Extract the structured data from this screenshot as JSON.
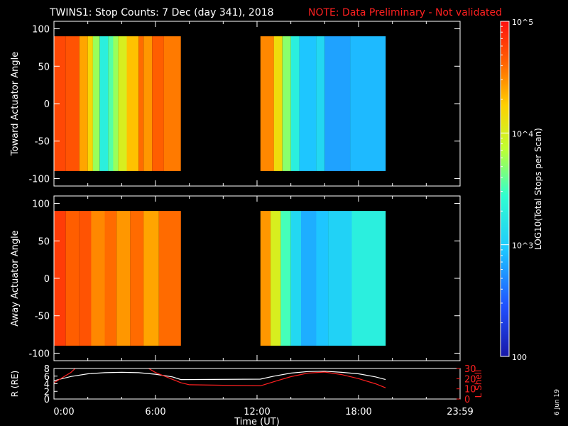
{
  "header": {
    "title": "TWINS1: Stop Counts:  7 Dec (day 341), 2018",
    "note": "NOTE: Data Preliminary - Not validated"
  },
  "side_date": "6 Jun 19",
  "colors": {
    "background": "#000000",
    "axes": "#ffffff",
    "note": "#ff2020",
    "r_line": "#ffffff",
    "lshell_line": "#ff2020"
  },
  "chart_data": [
    {
      "type": "heatmap",
      "name": "toward",
      "ylabel": "Toward Actuator Angle",
      "ylim": [
        -110,
        110
      ],
      "yticks": [
        -100,
        -50,
        0,
        50,
        100
      ],
      "y_extent": [
        -90,
        90
      ],
      "x_segments_hours": [
        [
          0.0,
          7.5
        ],
        [
          12.2,
          19.6
        ]
      ],
      "columns": [
        {
          "t0": 0.0,
          "t1": 0.7,
          "log": 4.75
        },
        {
          "t0": 0.7,
          "t1": 1.5,
          "log": 4.7
        },
        {
          "t0": 1.5,
          "t1": 2.0,
          "log": 4.4
        },
        {
          "t0": 2.0,
          "t1": 2.3,
          "log": 4.2
        },
        {
          "t0": 2.3,
          "t1": 2.7,
          "log": 3.75
        },
        {
          "t0": 2.7,
          "t1": 3.2,
          "log": 3.3
        },
        {
          "t0": 3.2,
          "t1": 3.5,
          "log": 3.55
        },
        {
          "t0": 3.5,
          "t1": 3.8,
          "log": 3.75
        },
        {
          "t0": 3.8,
          "t1": 4.3,
          "log": 4.0
        },
        {
          "t0": 4.3,
          "t1": 5.0,
          "log": 4.3
        },
        {
          "t0": 5.0,
          "t1": 5.3,
          "log": 4.6
        },
        {
          "t0": 5.3,
          "t1": 5.8,
          "log": 4.45
        },
        {
          "t0": 5.8,
          "t1": 6.5,
          "log": 4.65
        },
        {
          "t0": 6.5,
          "t1": 7.5,
          "log": 4.55
        },
        {
          "t0": 12.2,
          "t1": 13.0,
          "log": 4.5
        },
        {
          "t0": 13.0,
          "t1": 13.5,
          "log": 4.15
        },
        {
          "t0": 13.5,
          "t1": 14.0,
          "log": 3.7
        },
        {
          "t0": 14.0,
          "t1": 14.5,
          "log": 3.3
        },
        {
          "t0": 14.5,
          "t1": 15.5,
          "log": 2.95
        },
        {
          "t0": 15.5,
          "t1": 16.0,
          "log": 3.1
        },
        {
          "t0": 16.0,
          "t1": 17.5,
          "log": 2.8
        },
        {
          "t0": 17.5,
          "t1": 19.6,
          "log": 2.9
        }
      ]
    },
    {
      "type": "heatmap",
      "name": "away",
      "ylabel": "Away Actuator Angle",
      "ylim": [
        -110,
        110
      ],
      "yticks": [
        -100,
        -50,
        0,
        50,
        100
      ],
      "y_extent": [
        -90,
        90
      ],
      "x_segments_hours": [
        [
          0.0,
          7.5
        ],
        [
          12.2,
          19.6
        ]
      ],
      "columns": [
        {
          "t0": 0.0,
          "t1": 0.7,
          "log": 4.8
        },
        {
          "t0": 0.7,
          "t1": 1.5,
          "log": 4.65
        },
        {
          "t0": 1.5,
          "t1": 2.2,
          "log": 4.7
        },
        {
          "t0": 2.2,
          "t1": 3.0,
          "log": 4.5
        },
        {
          "t0": 3.0,
          "t1": 3.7,
          "log": 4.6
        },
        {
          "t0": 3.7,
          "t1": 4.5,
          "log": 4.45
        },
        {
          "t0": 4.5,
          "t1": 5.3,
          "log": 4.6
        },
        {
          "t0": 5.3,
          "t1": 6.2,
          "log": 4.4
        },
        {
          "t0": 6.2,
          "t1": 7.5,
          "log": 4.6
        },
        {
          "t0": 12.2,
          "t1": 12.8,
          "log": 4.45
        },
        {
          "t0": 12.8,
          "t1": 13.4,
          "log": 4.0
        },
        {
          "t0": 13.4,
          "t1": 14.0,
          "log": 3.5
        },
        {
          "t0": 14.0,
          "t1": 14.6,
          "log": 3.1
        },
        {
          "t0": 14.6,
          "t1": 15.5,
          "log": 2.85
        },
        {
          "t0": 15.5,
          "t1": 16.2,
          "log": 2.95
        },
        {
          "t0": 16.2,
          "t1": 17.6,
          "log": 3.05
        },
        {
          "t0": 17.6,
          "t1": 19.6,
          "log": 3.3
        }
      ]
    },
    {
      "type": "line",
      "name": "orbit",
      "ylabel": "R (RE)",
      "ylabel_right": "L Shell",
      "ylim": [
        0,
        8
      ],
      "yticks": [
        0,
        2,
        4,
        6,
        8
      ],
      "y2lim": [
        0,
        30
      ],
      "y2ticks": [
        0,
        10,
        20,
        30
      ],
      "xlim_hours": [
        0,
        24
      ],
      "xticks": [
        "0:00",
        "6:00",
        "12:00",
        "18:00",
        "23:59"
      ],
      "xlabel": "Time (UT)",
      "series": [
        {
          "axis": "left",
          "points": [
            [
              0,
              4.8
            ],
            [
              1,
              5.9
            ],
            [
              2,
              6.6
            ],
            [
              3,
              6.9
            ],
            [
              4,
              7.0
            ],
            [
              5,
              6.9
            ],
            [
              6,
              6.5
            ],
            [
              7,
              5.8
            ],
            [
              7.5,
              5.1
            ],
            [
              12.2,
              5.2
            ],
            [
              13,
              6.0
            ],
            [
              14,
              6.8
            ],
            [
              15,
              7.2
            ],
            [
              16,
              7.3
            ],
            [
              17,
              7.0
            ],
            [
              18,
              6.6
            ],
            [
              19,
              5.8
            ],
            [
              19.6,
              5.1
            ]
          ]
        },
        {
          "axis": "right",
          "points": [
            [
              0,
              16
            ],
            [
              1,
              26
            ],
            [
              1.5,
              34
            ],
            [
              5.2,
              34
            ],
            [
              6,
              26
            ],
            [
              7.5,
              16
            ],
            [
              8,
              14
            ],
            [
              10,
              13.5
            ],
            [
              12.2,
              13
            ],
            [
              13,
              17
            ],
            [
              14,
              22
            ],
            [
              15,
              25.5
            ],
            [
              16,
              26.5
            ],
            [
              17,
              24
            ],
            [
              18,
              20
            ],
            [
              19,
              15
            ],
            [
              19.6,
              11
            ]
          ]
        }
      ]
    },
    {
      "type": "colorbar",
      "name": "colorbar",
      "label": "LOG10(Total Stops per Scan)",
      "log_range": [
        2,
        5
      ],
      "tick_labels": [
        "100",
        "10^3",
        "10^4",
        "10^5"
      ]
    }
  ]
}
